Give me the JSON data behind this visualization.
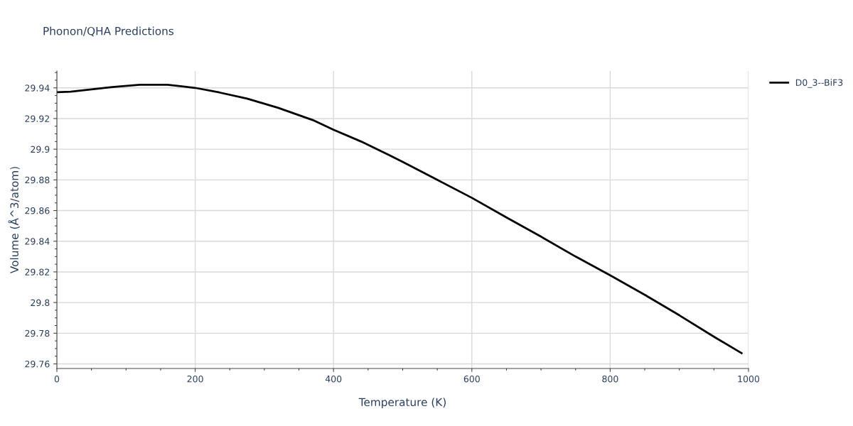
{
  "chart_data": {
    "type": "line",
    "title": "Phonon/QHA Predictions",
    "xlabel": "Temperature (K)",
    "ylabel": "Volume (Å^3/atom)",
    "series": [
      {
        "name": "D0_3--BiF3",
        "color": "#000000",
        "x": [
          0,
          20,
          50,
          80,
          120,
          160,
          200,
          235,
          275,
          320,
          370,
          400,
          440,
          480,
          500,
          550,
          600,
          650,
          700,
          750,
          800,
          850,
          900,
          950,
          990
        ],
        "values": [
          29.9372,
          29.9375,
          29.939,
          29.9405,
          29.942,
          29.942,
          29.94,
          29.937,
          29.933,
          29.927,
          29.919,
          29.9127,
          29.905,
          29.8962,
          29.8917,
          29.88,
          29.8683,
          29.8555,
          29.843,
          29.83,
          29.8178,
          29.805,
          29.7917,
          29.7777,
          29.767
        ]
      }
    ],
    "xlim": [
      0,
      1000
    ],
    "xticks": [
      0,
      200,
      400,
      600,
      800,
      1000
    ],
    "ylim": [
      29.757,
      29.951
    ],
    "yticks": [
      29.76,
      29.78,
      29.8,
      29.82,
      29.84,
      29.86,
      29.88,
      29.9,
      29.92,
      29.94
    ],
    "grid": true,
    "legend": "top right",
    "marker": "none",
    "line_style": "solid"
  }
}
